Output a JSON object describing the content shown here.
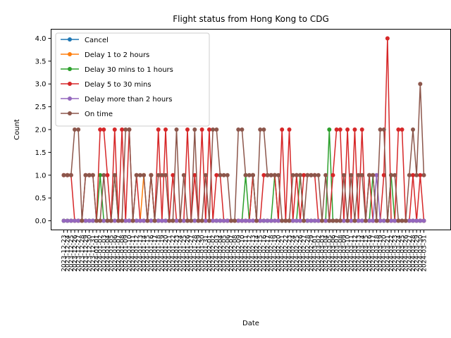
{
  "chart_data": {
    "type": "line",
    "title": "Flight status from Hong Kong to CDG",
    "xlabel": "Date",
    "ylabel": "Count",
    "ylim": [
      -0.2,
      4.2
    ],
    "yticks": [
      0.0,
      0.5,
      1.0,
      1.5,
      2.0,
      2.5,
      3.0,
      3.5,
      4.0
    ],
    "ytick_labels": [
      "0.0",
      "0.5",
      "1.0",
      "1.5",
      "2.0",
      "2.5",
      "3.0",
      "3.5",
      "4.0"
    ],
    "grid": false,
    "legend_position": "top-left",
    "x_tick_labels_note": "dense overlapping date labels rotated 90°",
    "x": [
      "2023-12-23",
      "2023-12-24",
      "2023-12-25",
      "2023-12-26",
      "2023-12-27",
      "2023-12-28",
      "2023-12-29",
      "2023-12-30",
      "2023-12-31",
      "2024-01-01",
      "2024-01-02",
      "2024-01-03",
      "2024-01-04",
      "2024-01-05",
      "2024-01-06",
      "2024-01-07",
      "2024-01-08",
      "2024-01-09",
      "2024-01-10",
      "2024-01-11",
      "2024-01-12",
      "2024-01-13",
      "2024-01-14",
      "2024-01-15",
      "2024-01-16",
      "2024-01-17",
      "2024-01-18",
      "2024-01-19",
      "2024-01-20",
      "2024-01-21",
      "2024-01-22",
      "2024-01-23",
      "2024-01-24",
      "2024-01-25",
      "2024-01-26",
      "2024-01-27",
      "2024-01-28",
      "2024-01-29",
      "2024-01-30",
      "2024-01-31",
      "2024-02-01",
      "2024-02-02",
      "2024-02-03",
      "2024-02-04",
      "2024-02-05",
      "2024-02-06",
      "2024-02-07",
      "2024-02-08",
      "2024-02-09",
      "2024-02-10",
      "2024-02-11",
      "2024-02-12",
      "2024-02-13",
      "2024-02-14",
      "2024-02-15",
      "2024-02-16",
      "2024-02-17",
      "2024-02-18",
      "2024-02-19",
      "2024-02-20",
      "2024-02-21",
      "2024-02-22",
      "2024-02-23",
      "2024-02-24",
      "2024-02-25",
      "2024-02-26",
      "2024-02-27",
      "2024-02-28",
      "2024-02-29",
      "2024-03-01",
      "2024-03-02",
      "2024-03-03",
      "2024-03-04",
      "2024-03-05",
      "2024-03-06",
      "2024-03-07",
      "2024-03-08",
      "2024-03-09",
      "2024-03-10",
      "2024-03-11",
      "2024-03-12",
      "2024-03-13",
      "2024-03-14",
      "2024-03-15",
      "2024-03-16",
      "2024-03-17",
      "2024-03-18",
      "2024-03-19",
      "2024-03-20",
      "2024-03-21",
      "2024-03-22",
      "2024-03-23",
      "2024-03-24",
      "2024-03-25",
      "2024-03-26",
      "2024-03-27",
      "2024-03-28",
      "2024-03-29",
      "2024-03-30",
      "2024-03-31"
    ],
    "series": [
      {
        "name": "Cancel",
        "color": "#1f77b4",
        "values": [
          0,
          0,
          0,
          0,
          0,
          0,
          0,
          0,
          0,
          0,
          0,
          0,
          0,
          0,
          0,
          0,
          0,
          0,
          0,
          0,
          0,
          0,
          0,
          0,
          0,
          0,
          0,
          0,
          0,
          0,
          0,
          0,
          0,
          0,
          0,
          0,
          0,
          0,
          0,
          0,
          0,
          0,
          0,
          0,
          0,
          0,
          0,
          0,
          0,
          0,
          0,
          0,
          0,
          0,
          0,
          0,
          0,
          0,
          0,
          0,
          0,
          0,
          0,
          0,
          0,
          0,
          0,
          0,
          0,
          0,
          0,
          0,
          0,
          0,
          0,
          0,
          0,
          0,
          0,
          0,
          0,
          0,
          0,
          0,
          0,
          0,
          0,
          0,
          0,
          0,
          0,
          0,
          0,
          0,
          0,
          0,
          0,
          0,
          0,
          0
        ]
      },
      {
        "name": "Delay 1 to 2 hours",
        "color": "#ff7f0e",
        "values": [
          0,
          0,
          0,
          0,
          0,
          0,
          0,
          0,
          0,
          0,
          0,
          0,
          0,
          0,
          0,
          0,
          0,
          0,
          0,
          0,
          0,
          0,
          1,
          0,
          1,
          0,
          0,
          0,
          0,
          0,
          0,
          0,
          0,
          0,
          0,
          0,
          0,
          0,
          0,
          0,
          0,
          0,
          0,
          0,
          0,
          0,
          0,
          0,
          0,
          0,
          0,
          0,
          0,
          0,
          0,
          0,
          0,
          0,
          0,
          0,
          0,
          0,
          0,
          0,
          0,
          0,
          0,
          0,
          0,
          0,
          0,
          0,
          0,
          0,
          0,
          0,
          0,
          0,
          0,
          0,
          0,
          0,
          0,
          0,
          0,
          0,
          0,
          0,
          0,
          0,
          0,
          0,
          0,
          0,
          0,
          0,
          0,
          0,
          0,
          0
        ]
      },
      {
        "name": "Delay 30 mins to 1 hours",
        "color": "#2ca02c",
        "values": [
          0,
          0,
          0,
          0,
          0,
          0,
          0,
          0,
          0,
          0,
          1,
          0,
          0,
          0,
          1,
          0,
          0,
          0,
          0,
          0,
          0,
          0,
          0,
          0,
          0,
          0,
          0,
          0,
          0,
          0,
          0,
          0,
          0,
          0,
          0,
          0,
          0,
          0,
          0,
          0,
          0,
          0,
          0,
          0,
          0,
          0,
          0,
          0,
          0,
          0,
          1,
          0,
          1,
          0,
          0,
          0,
          0,
          0,
          1,
          0,
          0,
          0,
          0,
          0,
          0,
          1,
          0,
          0,
          0,
          0,
          0,
          0,
          0,
          2,
          0,
          0,
          0,
          0,
          0,
          0,
          0,
          0,
          0,
          0,
          0,
          1,
          0,
          0,
          0,
          0,
          1,
          0,
          0,
          0,
          0,
          0,
          0,
          0,
          0,
          0
        ]
      },
      {
        "name": "Delay 5 to 30 mins",
        "color": "#d62728",
        "values": [
          1,
          1,
          1,
          0,
          0,
          0,
          1,
          1,
          1,
          0,
          2,
          2,
          1,
          0,
          2,
          0,
          2,
          0,
          2,
          0,
          1,
          0,
          0,
          0,
          1,
          0,
          2,
          0,
          2,
          0,
          1,
          0,
          0,
          0,
          2,
          0,
          1,
          0,
          2,
          0,
          2,
          0,
          1,
          1,
          0,
          0,
          0,
          0,
          0,
          0,
          0,
          0,
          1,
          0,
          0,
          1,
          1,
          1,
          1,
          0,
          2,
          0,
          2,
          0,
          1,
          0,
          1,
          1,
          1,
          1,
          0,
          0,
          0,
          0,
          1,
          2,
          2,
          0,
          2,
          0,
          2,
          0,
          2,
          0,
          1,
          0,
          0,
          0,
          1,
          4,
          0,
          0,
          2,
          2,
          0,
          0,
          1,
          0,
          1,
          0
        ]
      },
      {
        "name": "Delay more than 2 hours",
        "color": "#9467bd",
        "values": [
          0,
          0,
          0,
          0,
          0,
          0,
          0,
          0,
          0,
          0,
          0,
          0,
          0,
          0,
          0,
          0,
          0,
          0,
          0,
          0,
          0,
          0,
          0,
          0,
          0,
          0,
          0,
          0,
          0,
          0,
          0,
          0,
          0,
          0,
          0,
          0,
          0,
          0,
          0,
          0,
          0,
          0,
          0,
          0,
          0,
          0,
          0,
          0,
          0,
          0,
          0,
          0,
          0,
          0,
          0,
          0,
          0,
          0,
          0,
          0,
          0,
          0,
          0,
          0,
          0,
          0,
          0,
          0,
          0,
          0,
          0,
          0,
          0,
          0,
          0,
          0,
          0,
          0,
          0,
          0,
          0,
          0,
          0,
          0,
          0,
          0,
          1,
          0,
          0,
          0,
          0,
          0,
          0,
          0,
          0,
          0,
          0,
          0,
          0,
          0
        ]
      },
      {
        "name": "On time",
        "color": "#8c564b",
        "values": [
          1,
          1,
          1,
          2,
          2,
          0,
          1,
          1,
          1,
          0,
          0,
          1,
          0,
          0,
          1,
          0,
          0,
          2,
          2,
          0,
          1,
          1,
          1,
          0,
          1,
          0,
          1,
          1,
          1,
          0,
          0,
          2,
          0,
          1,
          0,
          0,
          2,
          0,
          0,
          1,
          0,
          2,
          2,
          1,
          1,
          1,
          0,
          0,
          2,
          2,
          1,
          1,
          1,
          0,
          2,
          2,
          1,
          1,
          1,
          1,
          0,
          0,
          0,
          1,
          1,
          1,
          0,
          1,
          1,
          1,
          1,
          0,
          1,
          0,
          0,
          0,
          0,
          1,
          0,
          1,
          0,
          1,
          1,
          0,
          1,
          1,
          0,
          2,
          2,
          0,
          1,
          1,
          0,
          0,
          0,
          1,
          2,
          1,
          3,
          1
        ]
      }
    ]
  }
}
